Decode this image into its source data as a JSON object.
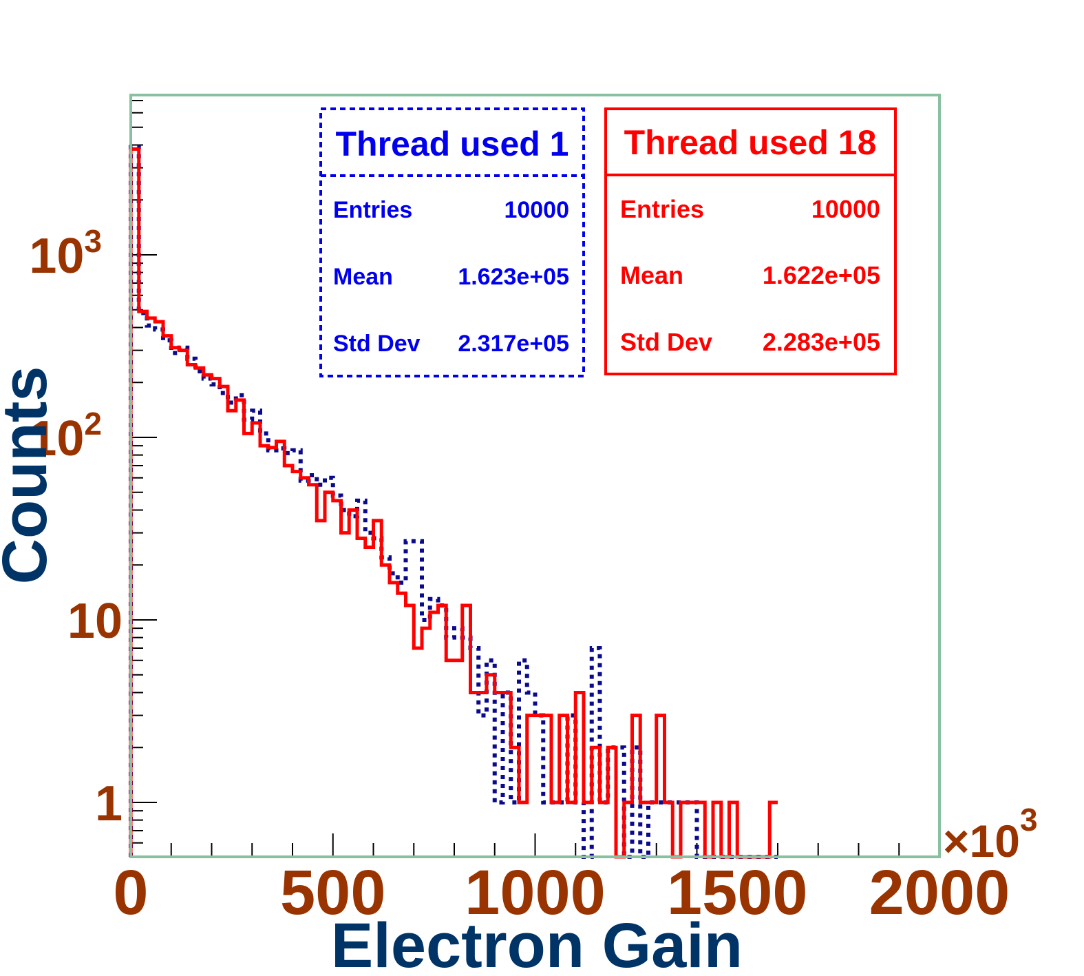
{
  "chart_data": {
    "type": "histogram",
    "title": "",
    "xlabel": "Electron Gain",
    "ylabel": "Counts",
    "x_multiplier_label": "×10",
    "x_multiplier_exponent": "3",
    "xlim": [
      0,
      2000
    ],
    "ylim": [
      0.5,
      7000
    ],
    "y_scale": "log",
    "bin_width": 20,
    "x_ticks": [
      0,
      500,
      1000,
      1500,
      2000
    ],
    "x_tick_labels": [
      "0",
      "500",
      "1000",
      "1500",
      "2000"
    ],
    "y_ticks": [
      {
        "value": 1,
        "label": "1",
        "exp": ""
      },
      {
        "value": 10,
        "label": "10",
        "exp": ""
      },
      {
        "value": 100,
        "label": "10",
        "exp": "2"
      },
      {
        "value": 1000,
        "label": "10",
        "exp": "3"
      }
    ],
    "colors": {
      "series1": "#0a0a8c",
      "series2": "#ff0000",
      "frame": "#88c0a0",
      "tick_label": "#993300",
      "axis_title": "#003366",
      "stats1": "#0000ee",
      "stats2": "#ff0000"
    },
    "series": [
      {
        "name": "Thread used 1",
        "style": "dotted",
        "values": [
          3900,
          480,
          410,
          390,
          340,
          290,
          310,
          270,
          230,
          210,
          195,
          175,
          155,
          170,
          125,
          140,
          105,
          85,
          87,
          82,
          85,
          58,
          62,
          55,
          60,
          48,
          40,
          37,
          45,
          30,
          28,
          22,
          18,
          16,
          27,
          27,
          10,
          13,
          12,
          8,
          9,
          8,
          7,
          3,
          6,
          1,
          4,
          1,
          6,
          4,
          3,
          1,
          1,
          1,
          3,
          1,
          0.5,
          7,
          1,
          2,
          2,
          0.5,
          2,
          0.5,
          1,
          1,
          1,
          1,
          1,
          1,
          0.5,
          0.5,
          0.5,
          0.5,
          0.5,
          0.5,
          0.5,
          0.5,
          0.5,
          0.5
        ],
        "stats": {
          "entries_label": "Entries",
          "entries": "10000",
          "mean_label": "Mean",
          "mean": "1.623e+05",
          "std_label": "Std Dev",
          "std": "2.317e+05"
        }
      },
      {
        "name": "Thread used 18",
        "style": "solid",
        "values": [
          3800,
          490,
          450,
          430,
          360,
          310,
          300,
          250,
          240,
          220,
          210,
          190,
          140,
          160,
          105,
          120,
          90,
          88,
          95,
          70,
          65,
          60,
          55,
          35,
          50,
          45,
          30,
          40,
          28,
          25,
          35,
          20,
          16,
          14,
          12,
          7,
          9,
          11,
          12,
          6,
          6,
          12,
          4,
          4,
          5,
          4,
          4,
          2,
          1,
          3,
          3,
          3,
          1,
          3,
          1,
          4,
          1,
          2,
          1,
          2,
          0.5,
          1,
          3,
          1,
          1,
          3,
          1,
          0.5,
          1,
          1,
          1,
          0.5,
          1,
          0.5,
          1,
          0.5,
          0.5,
          0.5,
          0.5,
          1
        ],
        "stats": {
          "entries_label": "Entries",
          "entries": "10000",
          "mean_label": "Mean",
          "mean": "1.622e+05",
          "std_label": "Std Dev",
          "std": "2.283e+05"
        }
      }
    ]
  }
}
